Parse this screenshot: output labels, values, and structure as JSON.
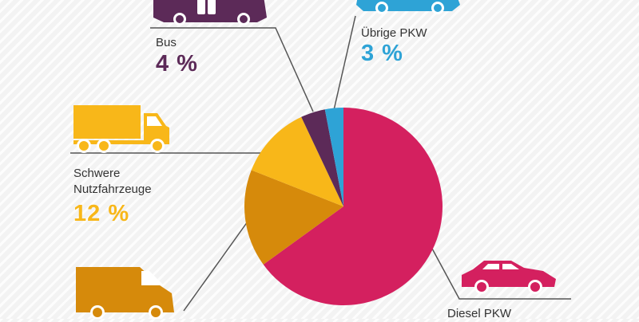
{
  "chart_data": {
    "type": "pie",
    "unit": "%",
    "slices": [
      {
        "label": "Diesel PKW",
        "value": 65,
        "color": "#d4205f"
      },
      {
        "label": "",
        "value": 16,
        "color": "#d68a0b"
      },
      {
        "label": "Schwere Nutzfahrzeuge",
        "value": 12,
        "color": "#f8b719",
        "display": "12 %"
      },
      {
        "label": "Bus",
        "value": 4,
        "color": "#5c2a58",
        "display": "4 %"
      },
      {
        "label": "Übrige PKW",
        "value": 3,
        "color": "#2ea3d6",
        "display": "3 %"
      }
    ]
  },
  "labels": {
    "bus": {
      "name": "Bus",
      "pct": "4 %"
    },
    "uebrige": {
      "name": "Übrige PKW",
      "pct": "3 %"
    },
    "schwere": {
      "name_line1": "Schwere",
      "name_line2": "Nutzfahrzeuge",
      "pct": "12 %"
    },
    "diesel": {
      "name": "Diesel PKW"
    }
  },
  "icons": [
    "bus-icon",
    "car-icon",
    "truck-icon",
    "van-icon",
    "sedan-icon"
  ]
}
